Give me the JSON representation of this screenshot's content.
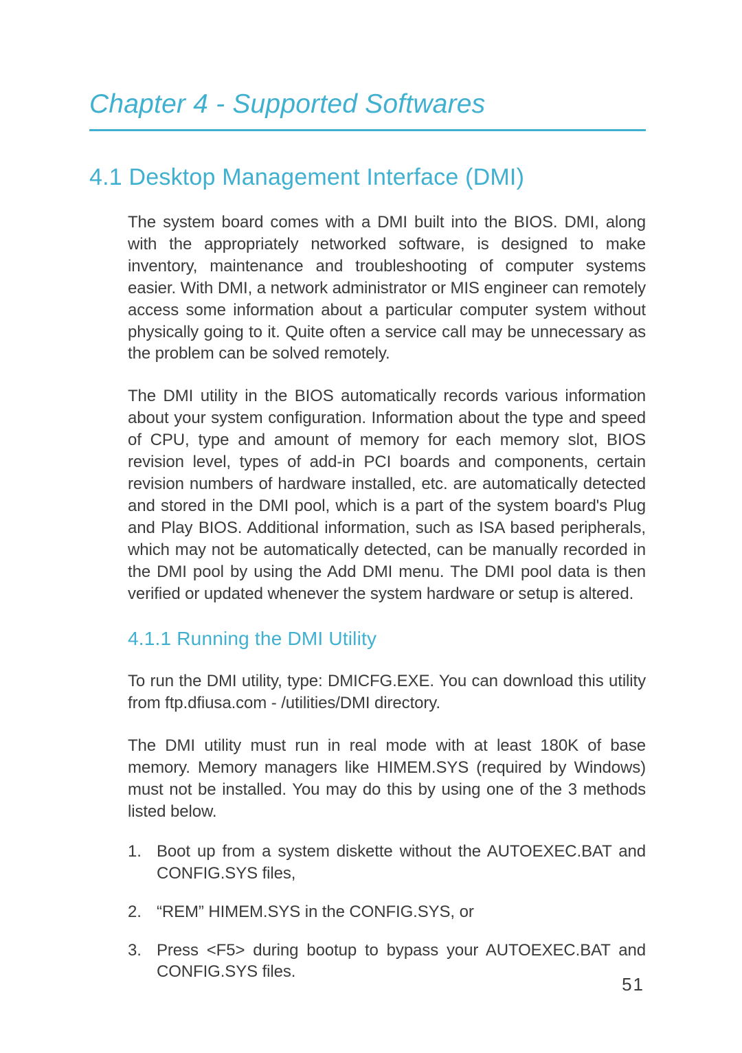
{
  "chapter_title": "Chapter 4 - Supported Softwares",
  "section": {
    "heading": "4.1 Desktop Management Interface (DMI)",
    "p1": "The system board comes with a DMI built into the BIOS.  DMI, along with the appropriately networked software, is designed to make inventory, maintenance and troubleshooting of computer systems easier. With DMI, a network administrator or MIS engineer can remotely access some information about a particular computer system without physically going to it. Quite often a service call may be unnecessary as the problem can be solved remotely.",
    "p2": "The DMI utility in the BIOS automatically records various information about your system configuration. Information about the type and speed of CPU, type and amount of memory for each memory slot, BIOS revision level, types of add-in PCI boards and components, certain revision numbers of hardware installed, etc. are automatically detected and stored in the DMI pool, which is a part of the system board's Plug and Play BIOS. Additional information, such as ISA based peripherals, which may not be automatically detected, can be manually recorded in the DMI pool by using the Add DMI menu. The DMI pool data is then verified or updated whenever the system hardware or setup is altered."
  },
  "subsection": {
    "heading": "4.1.1  Running the DMI Utility",
    "p1": "To run the DMI utility, type: DMICFG.EXE. You can download this utility from ftp.dfiusa.com - /utilities/DMI directory.",
    "p2": "The DMI utility must run in real mode with at least 180K of base memory. Memory managers like HIMEM.SYS (required by Windows) must not be installed. You may do this by using one of the 3 methods listed below.",
    "items": [
      "Boot up from a system diskette without the AUTOEXEC.BAT and CONFIG.SYS files,",
      "“REM” HIMEM.SYS in the CONFIG.SYS, or",
      "Press <F5> during bootup to bypass your AUTOEXEC.BAT and CONFIG.SYS files."
    ]
  },
  "page_number": "51",
  "colors": {
    "accent": "#3fb0d0",
    "body_text": "#3a3a3a",
    "background": "#ffffff"
  },
  "typography": {
    "chapter_title_size_pt": 29,
    "h2_size_pt": 26,
    "h3_size_pt": 21,
    "body_size_pt": 18
  }
}
